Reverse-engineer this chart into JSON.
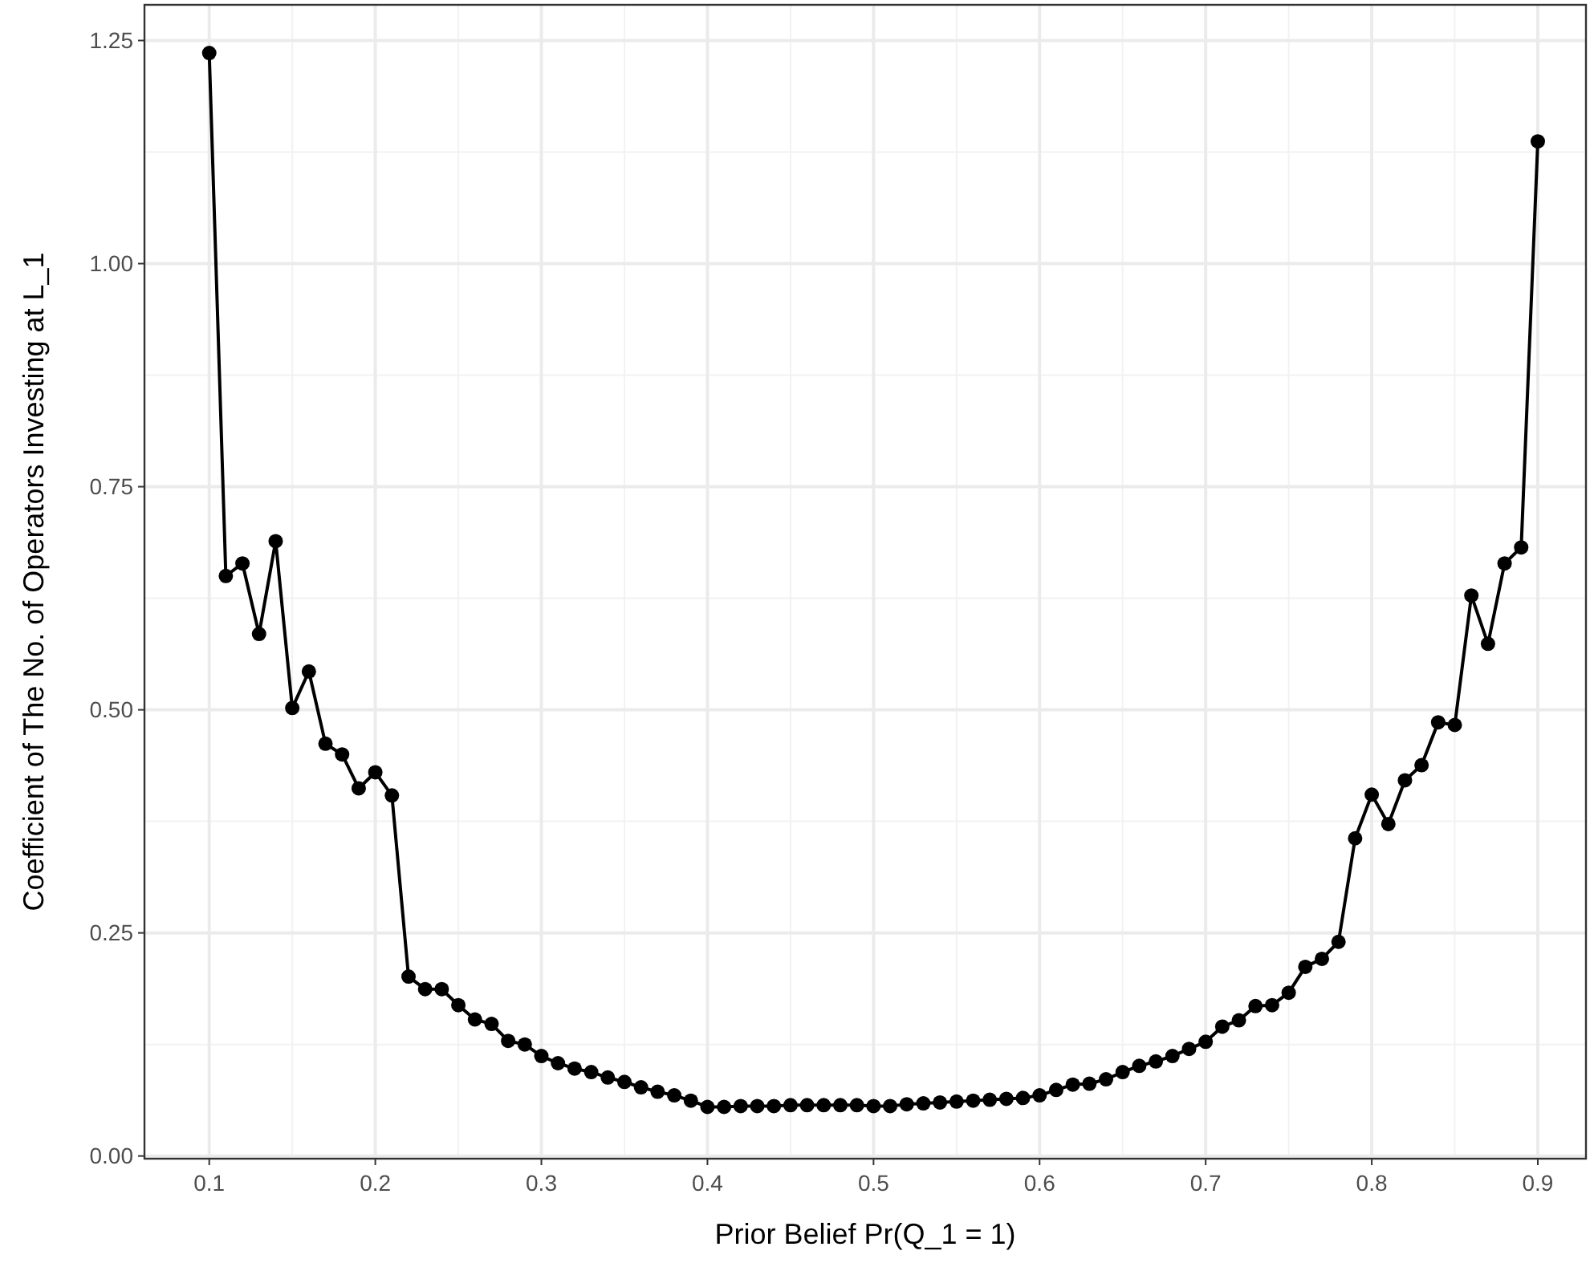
{
  "chart_data": {
    "type": "line",
    "xlabel": "Prior Belief Pr(Q_1 = 1)",
    "ylabel": "Coefficient of The No. of Operators Investing at L_1",
    "x": [
      0.1,
      0.11,
      0.12,
      0.13,
      0.14,
      0.15,
      0.16,
      0.17,
      0.18,
      0.19,
      0.2,
      0.21,
      0.22,
      0.23,
      0.24,
      0.25,
      0.26,
      0.27,
      0.28,
      0.29,
      0.3,
      0.31,
      0.32,
      0.33,
      0.34,
      0.35,
      0.36,
      0.37,
      0.38,
      0.39,
      0.4,
      0.41,
      0.42,
      0.43,
      0.44,
      0.45,
      0.46,
      0.47,
      0.48,
      0.49,
      0.5,
      0.51,
      0.52,
      0.53,
      0.54,
      0.55,
      0.56,
      0.57,
      0.58,
      0.59,
      0.6,
      0.61,
      0.62,
      0.63,
      0.64,
      0.65,
      0.66,
      0.67,
      0.68,
      0.69,
      0.7,
      0.71,
      0.72,
      0.73,
      0.74,
      0.75,
      0.76,
      0.77,
      0.78,
      0.79,
      0.8,
      0.81,
      0.82,
      0.83,
      0.84,
      0.85,
      0.86,
      0.87,
      0.88,
      0.89,
      0.9
    ],
    "series": [
      {
        "color": "#000000",
        "values": [
          1.236,
          0.65,
          0.664,
          0.585,
          0.689,
          0.502,
          0.543,
          0.462,
          0.45,
          0.412,
          0.43,
          0.404,
          0.201,
          0.187,
          0.187,
          0.169,
          0.153,
          0.148,
          0.129,
          0.125,
          0.112,
          0.104,
          0.098,
          0.094,
          0.088,
          0.083,
          0.077,
          0.072,
          0.068,
          0.062,
          0.055,
          0.055,
          0.056,
          0.056,
          0.056,
          0.057,
          0.057,
          0.057,
          0.057,
          0.057,
          0.056,
          0.056,
          0.058,
          0.059,
          0.06,
          0.061,
          0.062,
          0.063,
          0.064,
          0.065,
          0.068,
          0.074,
          0.08,
          0.081,
          0.086,
          0.094,
          0.101,
          0.106,
          0.112,
          0.12,
          0.128,
          0.145,
          0.152,
          0.168,
          0.169,
          0.183,
          0.212,
          0.221,
          0.24,
          0.356,
          0.405,
          0.372,
          0.421,
          0.438,
          0.486,
          0.483,
          0.628,
          0.574,
          0.664,
          0.682,
          1.137
        ]
      }
    ],
    "xlim": [
      0.061,
      0.929
    ],
    "ylim": [
      -0.003,
      1.29
    ],
    "xticks": [
      {
        "value": 0.1,
        "label": "0.1"
      },
      {
        "value": 0.2,
        "label": "0.2"
      },
      {
        "value": 0.3,
        "label": "0.3"
      },
      {
        "value": 0.4,
        "label": "0.4"
      },
      {
        "value": 0.5,
        "label": "0.5"
      },
      {
        "value": 0.6,
        "label": "0.6"
      },
      {
        "value": 0.7,
        "label": "0.7"
      },
      {
        "value": 0.8,
        "label": "0.8"
      },
      {
        "value": 0.9,
        "label": "0.9"
      }
    ],
    "yticks": [
      {
        "value": 0,
        "label": "0.00"
      },
      {
        "value": 0.25,
        "label": "0.25"
      },
      {
        "value": 0.5,
        "label": "0.50"
      },
      {
        "value": 0.75,
        "label": "0.75"
      },
      {
        "value": 1,
        "label": "1.00"
      },
      {
        "value": 1.25,
        "label": "1.25"
      }
    ],
    "grid": true,
    "marker": "circle",
    "line_style": "solid"
  }
}
